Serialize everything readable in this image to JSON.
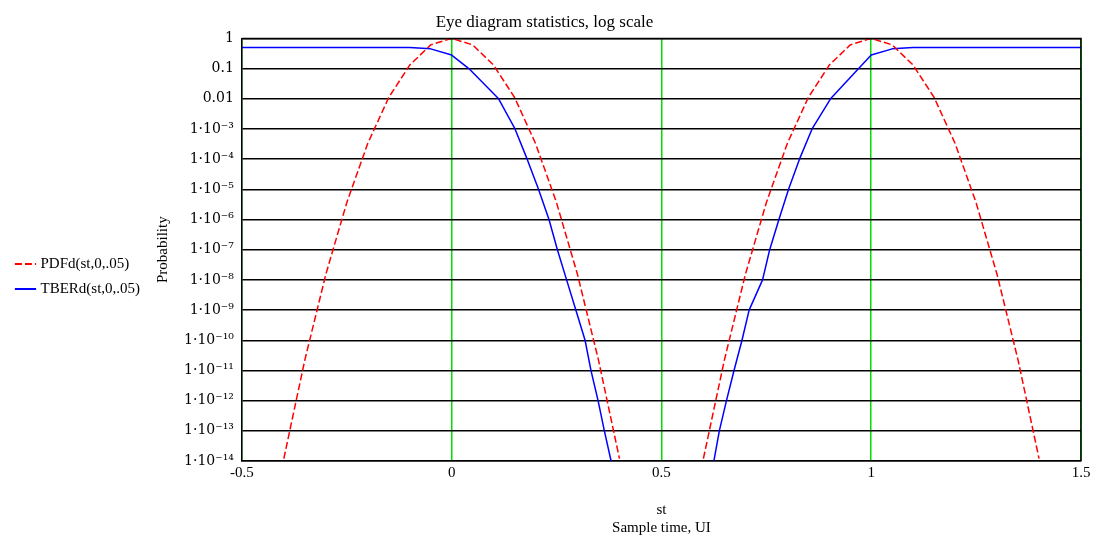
{
  "chart_data": {
    "type": "line",
    "title": "Eye diagram statistics, log scale",
    "xlabel": "st\nSample time, UI",
    "ylabel": "Probability",
    "xlim": [
      -0.5,
      1.5
    ],
    "xticks": [
      -0.5,
      0,
      0.5,
      1,
      1.5
    ],
    "ylim": [
      1e-14,
      1
    ],
    "yticks": [
      1,
      0.1,
      0.01,
      {
        "value": 0.001,
        "label": "1·10⁻³"
      },
      {
        "value": 0.0001,
        "label": "1·10⁻⁴"
      },
      {
        "value": 1e-05,
        "label": "1·10⁻⁵"
      },
      {
        "value": 1e-06,
        "label": "1·10⁻⁶"
      },
      {
        "value": 1e-07,
        "label": "1·10⁻⁷"
      },
      {
        "value": 1e-08,
        "label": "1·10⁻⁸"
      },
      {
        "value": 1e-09,
        "label": "1·10⁻⁹"
      },
      {
        "value": 1e-10,
        "label": "1·10⁻¹⁰"
      },
      {
        "value": 1e-11,
        "label": "1·10⁻¹¹"
      },
      {
        "value": 1e-12,
        "label": "1·10⁻¹²"
      },
      {
        "value": 1e-13,
        "label": "1·10⁻¹³"
      },
      {
        "value": 1e-14,
        "label": "1·10⁻¹⁴"
      }
    ],
    "log": "y",
    "grid": true,
    "legend": "left",
    "marker": "none",
    "series": [
      {
        "name": "PDFd(st,0,.05)",
        "color": "#ff0000",
        "line_style": "dashed",
        "x": [
          -0.4,
          -0.35,
          -0.3,
          -0.25,
          -0.2,
          -0.15,
          -0.1,
          -0.05,
          0,
          0.05,
          0.1,
          0.15,
          0.2,
          0.25,
          0.3,
          0.35,
          0.4,
          0.5,
          0.6,
          0.65,
          0.7,
          0.75,
          0.8,
          0.85,
          0.9,
          0.95,
          1,
          1.05,
          1.1,
          1.15,
          1.2,
          1.25,
          1.3,
          1.35,
          1.4
        ],
        "values": [
          1.2e-14,
          2.2e-11,
          1.5e-08,
          3.6e-06,
          0.00033,
          0.011,
          0.13,
          0.61,
          1,
          0.61,
          0.13,
          0.011,
          0.00033,
          3.6e-06,
          1.5e-08,
          2.2e-11,
          1.2e-14,
          null,
          1.2e-14,
          2.2e-11,
          1.5e-08,
          3.6e-06,
          0.00033,
          0.011,
          0.13,
          0.61,
          1,
          0.61,
          0.13,
          0.011,
          0.00033,
          3.6e-06,
          1.5e-08,
          2.2e-11,
          1.2e-14
        ]
      },
      {
        "name": "TBERd(st,0,.05)",
        "color": "#0000ff",
        "line_style": "solid",
        "x": [
          -0.5,
          -0.1,
          -0.05,
          0,
          0.041,
          0.112,
          0.151,
          0.18,
          0.207,
          0.232,
          0.252,
          0.274,
          0.296,
          0.318,
          0.332,
          0.349,
          0.364,
          0.38,
          0.5,
          0.625,
          0.638,
          0.655,
          0.673,
          0.692,
          0.709,
          0.741,
          0.758,
          0.78,
          0.803,
          0.829,
          0.859,
          0.903,
          0.97,
          1,
          1.05,
          1.1,
          1.5
        ],
        "values": [
          0.5,
          0.5,
          0.45,
          0.28,
          0.1,
          0.01,
          0.001,
          0.0001,
          1e-05,
          1e-06,
          1e-07,
          1e-08,
          1e-09,
          1e-10,
          1e-11,
          1e-12,
          1e-13,
          1e-14,
          null,
          1e-14,
          1e-13,
          1e-12,
          1e-11,
          1e-10,
          1e-09,
          1e-08,
          1e-07,
          1e-06,
          1e-05,
          0.0001,
          0.001,
          0.01,
          0.1,
          0.28,
          0.45,
          0.5,
          0.5
        ]
      }
    ]
  }
}
